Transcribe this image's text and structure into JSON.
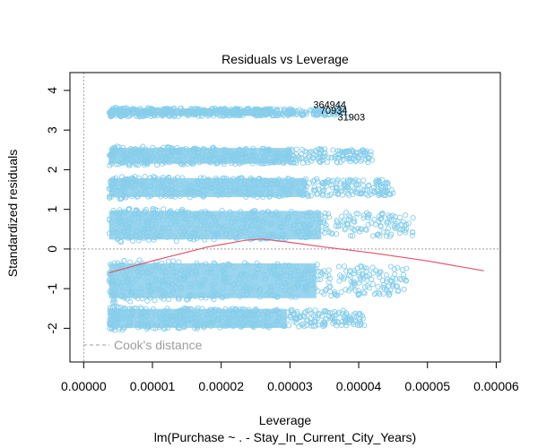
{
  "chart_data": {
    "type": "scatter",
    "title": "Residuals vs Leverage",
    "xlabel": "Leverage",
    "subtitle": "lm(Purchase ~ . - Stay_In_Current_City_Years)",
    "ylabel": "Standardized residuals",
    "xlim": [
      -2e-06,
      6.06e-05
    ],
    "ylim": [
      -2.85,
      4.45
    ],
    "x_ticks": [
      0,
      1e-05,
      2e-05,
      3e-05,
      4e-05,
      5e-05,
      6e-05
    ],
    "x_tick_labels": [
      "0.00000",
      "0.00001",
      "0.00002",
      "0.00003",
      "0.00004",
      "0.00005",
      "0.00006"
    ],
    "y_ticks": [
      -2,
      -1,
      0,
      1,
      2,
      3,
      4
    ],
    "y_tick_labels": [
      "-2",
      "-1",
      "0",
      "1",
      "2",
      "3",
      "4"
    ],
    "point_color": "#87ceeb",
    "smooth_color": "#df536b",
    "smooth_line": {
      "x": [
        3.7e-06,
        1e-05,
        1.8e-05,
        2.35e-05,
        2.6e-05,
        2.9e-05,
        3.5e-05,
        4.2e-05,
        5e-05,
        5.82e-05
      ],
      "y": [
        -0.6,
        -0.3,
        0.05,
        0.22,
        0.25,
        0.19,
        0.05,
        -0.1,
        -0.3,
        -0.55
      ]
    },
    "residual_bands": [
      {
        "center": 3.45,
        "spread": 0.12,
        "xmax": 3.8e-05
      },
      {
        "center": 2.35,
        "spread": 0.25,
        "xmax": 4.2e-05
      },
      {
        "center": 1.55,
        "spread": 0.3,
        "xmax": 4.5e-05
      },
      {
        "center": 0.6,
        "spread": 0.45,
        "xmax": 4.8e-05
      },
      {
        "center": -0.8,
        "spread": 0.55,
        "xmax": 4.7e-05
      },
      {
        "center": -1.75,
        "spread": 0.3,
        "xmax": 4.1e-05
      }
    ],
    "outliers": [
      {
        "label": "364944",
        "x": 3.73e-05,
        "y": 3.65
      },
      {
        "label": "70934",
        "x": 3.75e-05,
        "y": 3.5
      },
      {
        "label": "31903",
        "x": 3.85e-05,
        "y": 3.33
      }
    ],
    "legend": {
      "text": "Cook's distance",
      "position": "bottom-left"
    },
    "reference_lines": {
      "h": 0,
      "v": 0
    }
  }
}
